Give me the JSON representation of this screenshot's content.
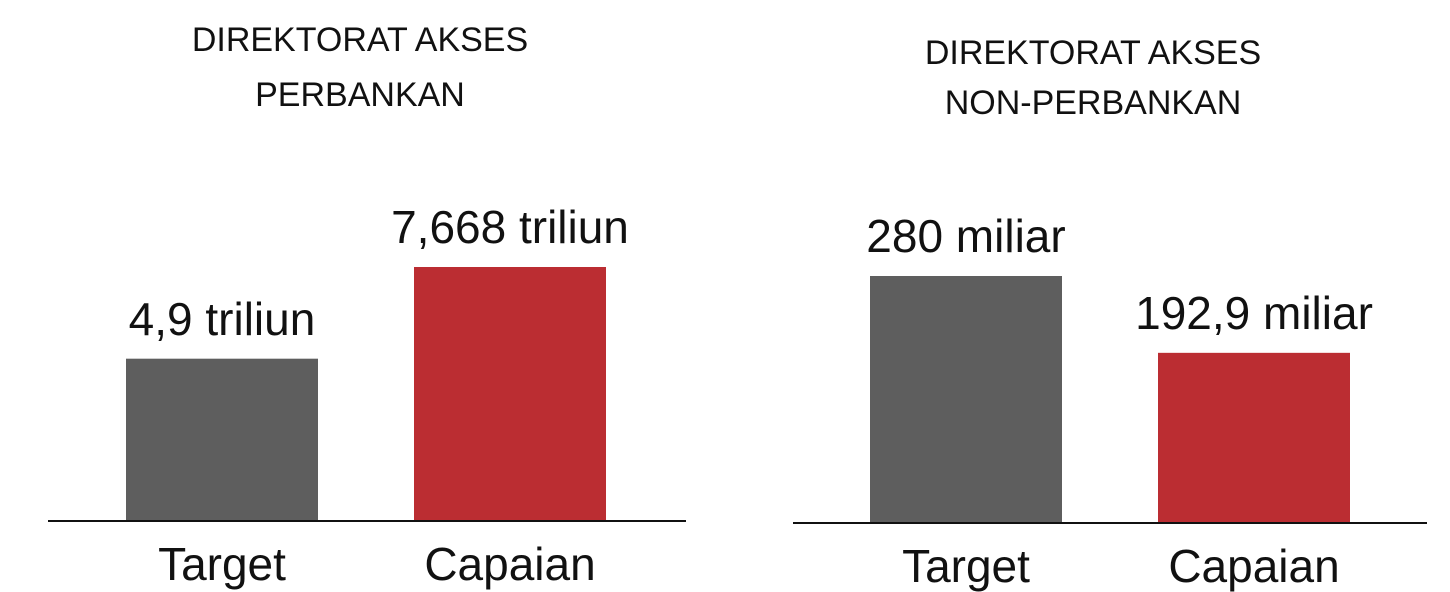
{
  "chart_data": [
    {
      "type": "bar",
      "title": [
        "DIREKTORAT AKSES",
        "PERBANKAN"
      ],
      "categories": [
        "Target",
        "Capaian"
      ],
      "values": [
        4.9,
        7.668
      ],
      "value_labels": [
        "4,9 triliun",
        "7,668 triliun"
      ],
      "colors": [
        "#5e5e5e",
        "#bb2d32"
      ]
    },
    {
      "type": "bar",
      "title": [
        "DIREKTORAT AKSES",
        "NON-PERBANKAN"
      ],
      "categories": [
        "Target",
        "Capaian"
      ],
      "values": [
        280,
        192.9
      ],
      "value_labels": [
        "280 miliar",
        "192,9 miliar"
      ],
      "colors": [
        "#5e5e5e",
        "#bb2d32"
      ]
    }
  ]
}
